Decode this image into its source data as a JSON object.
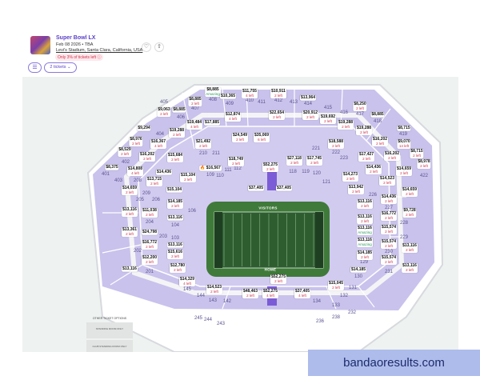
{
  "event": {
    "title": "Super Bowl LX",
    "date": "Feb 08 2026 • TBA",
    "venue": "Levi's Stadium, Santa Clara, California, USA",
    "scarcity": "Only 3% of tickets left ⓘ"
  },
  "actions": {
    "favorite_icon": "♡",
    "share_icon": "⇧",
    "filter_icon": "☰",
    "quantity": "2 tickets ⌄"
  },
  "field": {
    "visitors": "VISITORS",
    "home": "HOME",
    "colors": {
      "grass": "#3f7a3a",
      "turf": "#2e5e30",
      "section": "#c9c2ec",
      "highlight": "#7b5cd6"
    }
  },
  "listings": [
    {
      "price": "$8,885",
      "note": "Amazing"
    },
    {
      "price": "$10,365",
      "note": ""
    },
    {
      "price": "$8,885",
      "note": "2 left"
    },
    {
      "price": "$9,063",
      "note": "2 left"
    },
    {
      "price": "$8,885",
      "note": ""
    },
    {
      "price": "$12,874",
      "note": "4 left"
    },
    {
      "price": "$19,484",
      "note": "4 left"
    },
    {
      "price": "$17,885",
      "note": ""
    },
    {
      "price": "$9,294",
      "note": ""
    },
    {
      "price": "$19,288",
      "note": "2 left"
    },
    {
      "price": "$8,976",
      "note": "2 left"
    },
    {
      "price": "$16,367",
      "note": "4 left"
    },
    {
      "price": "$21,492",
      "note": "2 left"
    },
    {
      "price": "$8,529",
      "note": "2 left"
    },
    {
      "price": "$16,202",
      "note": "2 left"
    },
    {
      "price": "$15,684",
      "note": "2 left"
    },
    {
      "price": "$8,375",
      "note": ""
    },
    {
      "price": "$14,808",
      "note": "4 left"
    },
    {
      "price": "🔥 $16,567",
      "note": ""
    },
    {
      "price": "$14,436",
      "note": ""
    },
    {
      "price": "$15,104",
      "note": "2 left"
    },
    {
      "price": "$13,715",
      "note": "2 left"
    },
    {
      "price": "$15,104",
      "note": ""
    },
    {
      "price": "$11,755",
      "note": "4 left"
    },
    {
      "price": "$10,911",
      "note": "2 left"
    },
    {
      "price": "$13,964",
      "note": ""
    },
    {
      "price": "$22,654",
      "note": "2 left"
    },
    {
      "price": "$20,912",
      "note": "2 left"
    },
    {
      "price": "$19,692",
      "note": "2 left"
    },
    {
      "price": "$8,250",
      "note": "2 left"
    },
    {
      "price": "$8,885",
      "note": ""
    },
    {
      "price": "$19,288",
      "note": "2 left"
    },
    {
      "price": "$19,288",
      "note": "2 left"
    },
    {
      "price": "$8,715",
      "note": ""
    },
    {
      "price": "$16,202",
      "note": "2 left"
    },
    {
      "price": "$9,070",
      "note": "14 left"
    },
    {
      "price": "$35,069",
      "note": "6 left"
    },
    {
      "price": "$24,549",
      "note": "2 left"
    },
    {
      "price": "$18,588",
      "note": "2 left"
    },
    {
      "price": "$16,202",
      "note": "2 left"
    },
    {
      "price": "$8,715",
      "note": "2 left"
    },
    {
      "price": "$8,978",
      "note": "2 left"
    },
    {
      "price": "$17,427",
      "note": "2 left"
    },
    {
      "price": "$14,436",
      "note": "2 left"
    },
    {
      "price": "$14,659",
      "note": "2 left"
    },
    {
      "price": "$14,523",
      "note": "2 left"
    },
    {
      "price": "$14,273",
      "note": "2 left"
    },
    {
      "price": "$13,942",
      "note": "2 left"
    },
    {
      "price": "$52,275",
      "note": "2 left"
    },
    {
      "price": "$27,118",
      "note": "2 left"
    },
    {
      "price": "$17,745",
      "note": "2 left"
    },
    {
      "price": "$18,749",
      "note": "2 left"
    },
    {
      "price": "$37,405",
      "note": ""
    },
    {
      "price": "$37,405",
      "note": ""
    },
    {
      "price": "$14,659",
      "note": "2 left"
    },
    {
      "price": "$14,185",
      "note": "2 left"
    },
    {
      "price": "$13,116",
      "note": "2 left"
    },
    {
      "price": "$11,038",
      "note": "2 left"
    },
    {
      "price": "$13,116",
      "note": ""
    },
    {
      "price": "$13,361",
      "note": "2 left"
    },
    {
      "price": "$24,798",
      "note": ""
    },
    {
      "price": "$16,772",
      "note": "2 left"
    },
    {
      "price": "$13,116",
      "note": ""
    },
    {
      "price": "$15,616",
      "note": "2 left"
    },
    {
      "price": "$12,200",
      "note": "2 left"
    },
    {
      "price": "$13,116",
      "note": ""
    },
    {
      "price": "$12,780",
      "note": "2 left"
    },
    {
      "price": "$14,329",
      "note": "4 left"
    },
    {
      "price": "$14,523",
      "note": "2 left"
    },
    {
      "price": "$14,659",
      "note": "2 left"
    },
    {
      "price": "$14,436",
      "note": "2 left"
    },
    {
      "price": "$13,116",
      "note": "2 left"
    },
    {
      "price": "$9,728",
      "note": "2 left"
    },
    {
      "price": "$16,772",
      "note": "2 left"
    },
    {
      "price": "$13,116",
      "note": "2 left"
    },
    {
      "price": "$13,116",
      "note": "Amazing"
    },
    {
      "price": "$15,574",
      "note": "2 left"
    },
    {
      "price": "$13,116",
      "note": "Amazing"
    },
    {
      "price": "$15,574",
      "note": "2 left"
    },
    {
      "price": "$13,116",
      "note": "2 left"
    },
    {
      "price": "$14,185",
      "note": "2 left"
    },
    {
      "price": "$15,574",
      "note": "2 left"
    },
    {
      "price": "$13,116",
      "note": "2 left"
    },
    {
      "price": "$14,185",
      "note": ""
    },
    {
      "price": "$15,045",
      "note": "2 left"
    },
    {
      "price": "$52,275",
      "note": "2 left"
    },
    {
      "price": "$48,463",
      "note": "2 left"
    },
    {
      "price": "$52,275",
      "note": "4 left"
    },
    {
      "price": "$37,405",
      "note": "4 left"
    }
  ],
  "sections": [
    "401",
    "402",
    "403",
    "404",
    "405",
    "406",
    "407",
    "408",
    "409",
    "410",
    "411",
    "412",
    "413",
    "414",
    "415",
    "416",
    "417",
    "418",
    "419",
    "422",
    "201",
    "202",
    "203",
    "204",
    "205",
    "206",
    "208",
    "209",
    "210",
    "211",
    "221",
    "222",
    "223",
    "226",
    "227",
    "228",
    "229",
    "230",
    "231",
    "103",
    "104",
    "106",
    "109",
    "110",
    "111",
    "112",
    "118",
    "119",
    "120",
    "121",
    "129",
    "130",
    "131",
    "132",
    "133",
    "134",
    "142",
    "143",
    "144",
    "145",
    "243",
    "244",
    "245",
    "236",
    "238",
    "232"
  ],
  "other_options": {
    "heading": "OTHER TICKET OPTIONS",
    "options": [
      "STANDING ROOM ONLY",
      "CLUB STANDING ROOM ONLY"
    ]
  },
  "watermark": "bandaoresults.com"
}
